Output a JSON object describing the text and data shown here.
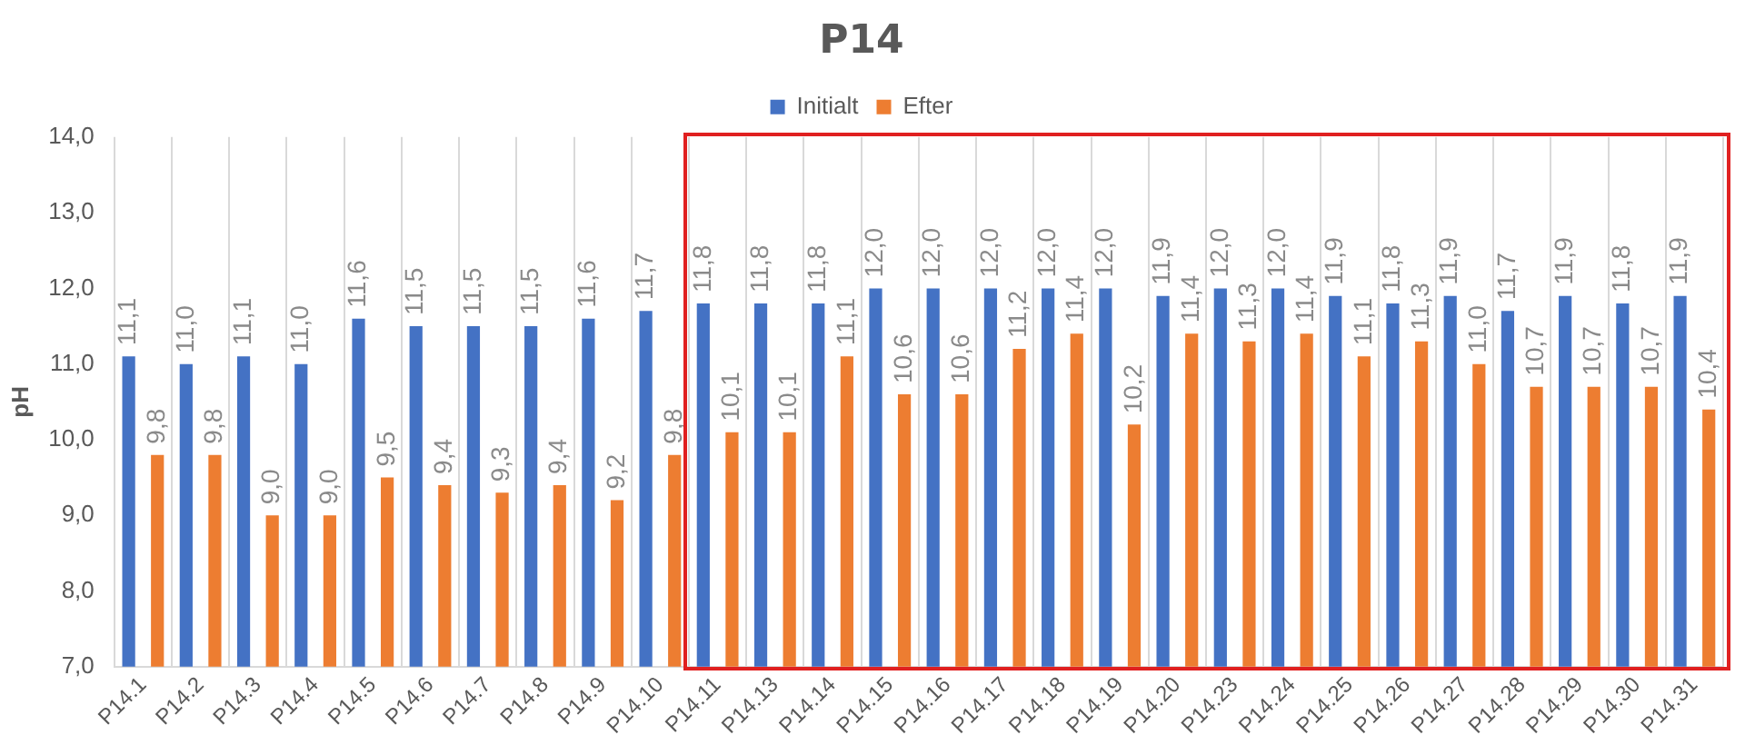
{
  "chart_data": {
    "type": "bar",
    "title": "P14",
    "ylabel": "pH",
    "categories": [
      "P14.1",
      "P14.2",
      "P14.3",
      "P14.4",
      "P14.5",
      "P14.6",
      "P14.7",
      "P14.8",
      "P14.9",
      "P14.10",
      "P14.11",
      "P14.13",
      "P14.14",
      "P14.15",
      "P14.16",
      "P14.17",
      "P14.18",
      "P14.19",
      "P14.20",
      "P14.23",
      "P14.24",
      "P14.25",
      "P14.26",
      "P14.27",
      "P14.28",
      "P14.29",
      "P14.30",
      "P14.31"
    ],
    "series": [
      {
        "name": "Initialt",
        "color": "#4472c4",
        "values": [
          11.1,
          11.0,
          11.1,
          11.0,
          11.6,
          11.5,
          11.5,
          11.5,
          11.6,
          11.7,
          11.8,
          11.8,
          11.8,
          12.0,
          12.0,
          12.0,
          12.0,
          12.0,
          11.9,
          12.0,
          12.0,
          11.9,
          11.8,
          11.9,
          11.7,
          11.9,
          11.8,
          11.9
        ],
        "value_labels": [
          "11,1",
          "11,0",
          "11,1",
          "11,0",
          "11,6",
          "11,5",
          "11,5",
          "11,5",
          "11,6",
          "11,7",
          "11,8",
          "11,8",
          "11,8",
          "12,0",
          "12,0",
          "12,0",
          "12,0",
          "12,0",
          "11,9",
          "12,0",
          "12,0",
          "11,9",
          "11,8",
          "11,9",
          "11,7",
          "11,9",
          "11,8",
          "11,9"
        ]
      },
      {
        "name": "Efter",
        "color": "#ed7d31",
        "values": [
          9.8,
          9.8,
          9.0,
          9.0,
          9.5,
          9.4,
          9.3,
          9.4,
          9.2,
          9.8,
          10.1,
          10.1,
          11.1,
          10.6,
          10.6,
          11.2,
          11.4,
          10.2,
          11.4,
          11.3,
          11.4,
          11.1,
          11.3,
          11.0,
          10.7,
          10.7,
          10.7,
          10.4
        ],
        "value_labels": [
          "9,8",
          "9,8",
          "9,0",
          "9,0",
          "9,5",
          "9,4",
          "9,3",
          "9,4",
          "9,2",
          "9,8",
          "10,1",
          "10,1",
          "11,1",
          "10,6",
          "10,6",
          "11,2",
          "11,4",
          "10,2",
          "11,4",
          "11,3",
          "11,4",
          "11,1",
          "11,3",
          "11,0",
          "10,7",
          "10,7",
          "10,7",
          "10,4"
        ]
      }
    ],
    "ylim": [
      7,
      14
    ],
    "yticks": [
      {
        "value": 7,
        "label": "7,0"
      },
      {
        "value": 8,
        "label": "8,0"
      },
      {
        "value": 9,
        "label": "9,0"
      },
      {
        "value": 10,
        "label": "10,0"
      },
      {
        "value": 11,
        "label": "11,0"
      },
      {
        "value": 12,
        "label": "12,0"
      },
      {
        "value": 13,
        "label": "13,0"
      },
      {
        "value": 14,
        "label": "14,0"
      }
    ],
    "grid": "x",
    "legend": "top"
  }
}
